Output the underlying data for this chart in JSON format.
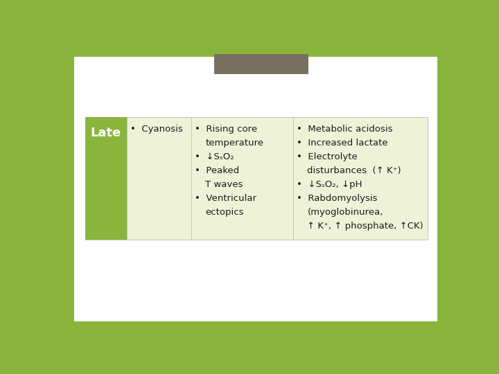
{
  "bg_outer": "#8ab53c",
  "bg_slide": "#ffffff",
  "header_rect_color": "#7a7060",
  "late_col_color": "#8ab53c",
  "late_text": "Late",
  "late_text_color": "#ffffff",
  "table_bg": "#eef3d8",
  "col1_header": "Cyanosis",
  "col2_lines": [
    [
      "Rising core",
      true
    ],
    [
      "temperature",
      false
    ],
    [
      "↓SₛO₂",
      true
    ],
    [
      "Peaked",
      true
    ],
    [
      "T waves",
      false
    ],
    [
      "Ventricular",
      true
    ],
    [
      "ectopics",
      false
    ]
  ],
  "col3_lines": [
    [
      "Metabolic acidosis",
      true
    ],
    [
      "Increased lactate",
      true
    ],
    [
      "Electrolyte",
      true
    ],
    [
      "disturbances  (↑ K⁺)",
      false
    ],
    [
      "↓SₛO₂, ↓pH",
      true
    ],
    [
      "Rabdomyolysis",
      true
    ],
    [
      "(myoglobinurea,",
      false
    ],
    [
      "↑ K⁺, ↑ phosphate, ↑CK)",
      false
    ]
  ],
  "text_color": "#1a1a1a",
  "bullet": "•",
  "font_size": 9.5,
  "late_font_size": 13
}
